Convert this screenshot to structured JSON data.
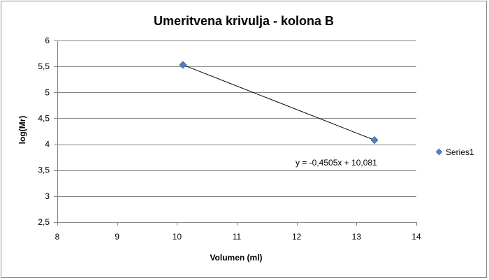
{
  "chart_data": {
    "type": "scatter",
    "title": "Umeritvena krivulja - kolona B",
    "xlabel": "Volumen (ml)",
    "ylabel": "log(Mr)",
    "xlim": [
      8,
      14
    ],
    "ylim": [
      2.5,
      6
    ],
    "x_ticks": [
      8,
      9,
      10,
      11,
      12,
      13,
      14
    ],
    "y_ticks": [
      2.5,
      3,
      3.5,
      4,
      4.5,
      5,
      5.5,
      6
    ],
    "x_tick_labels": [
      "8",
      "9",
      "10",
      "11",
      "12",
      "13",
      "14"
    ],
    "y_tick_labels": [
      "2,5",
      "3",
      "3,5",
      "4",
      "4,5",
      "5",
      "5,5",
      "6"
    ],
    "grid": "horizontal",
    "legend_position": "right",
    "series": [
      {
        "name": "Series1",
        "color": "#4f81bd",
        "marker": "diamond",
        "points": [
          {
            "x": 10.1,
            "y": 5.53
          },
          {
            "x": 13.3,
            "y": 4.08
          }
        ]
      }
    ],
    "trendline": {
      "type": "linear",
      "color": "#000000",
      "equation": "y = -0,4505x + 10,081"
    }
  }
}
